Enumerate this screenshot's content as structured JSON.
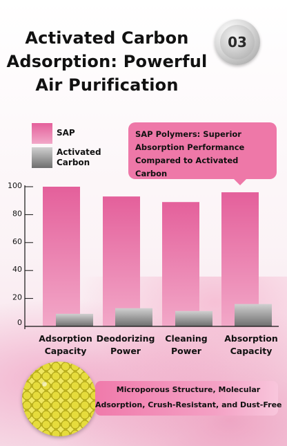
{
  "title": {
    "line1": "Activated Carbon",
    "line2": "Adsorption: Powerful",
    "line3": "Air Purification"
  },
  "badge": {
    "number": "03"
  },
  "callout": {
    "line1": "SAP Polymers: Superior",
    "line2": "Absorption Performance",
    "line3": "Compared to Activated Carbon"
  },
  "bottom_note": {
    "line1": "Microporous Structure, Molecular",
    "line2": "Adsorption, Crush-Resistant, and Dust-Free"
  },
  "colors": {
    "sap_top": "#e4609b",
    "sap_bottom": "#f2a8c8",
    "carbon_top": "#d0d0d0",
    "carbon_bottom": "#6e6e6e",
    "accent": "#ee78a8"
  },
  "chart_data": {
    "type": "bar",
    "categories": [
      [
        "Adsorption",
        "Capacity"
      ],
      [
        "Deodorizing",
        "Power"
      ],
      [
        "Cleaning",
        "Power"
      ],
      [
        "Absorption",
        "Capacity"
      ]
    ],
    "series": [
      {
        "name": "SAP",
        "values": [
          100,
          93,
          89,
          96
        ]
      },
      {
        "name": "Activated\nCarbon",
        "values": [
          9,
          13,
          11,
          16
        ]
      }
    ],
    "yticks": [
      "0",
      "20",
      "40",
      "60",
      "80",
      "100"
    ],
    "ylim": [
      0,
      100
    ],
    "legend": "top-left",
    "grid": false
  }
}
